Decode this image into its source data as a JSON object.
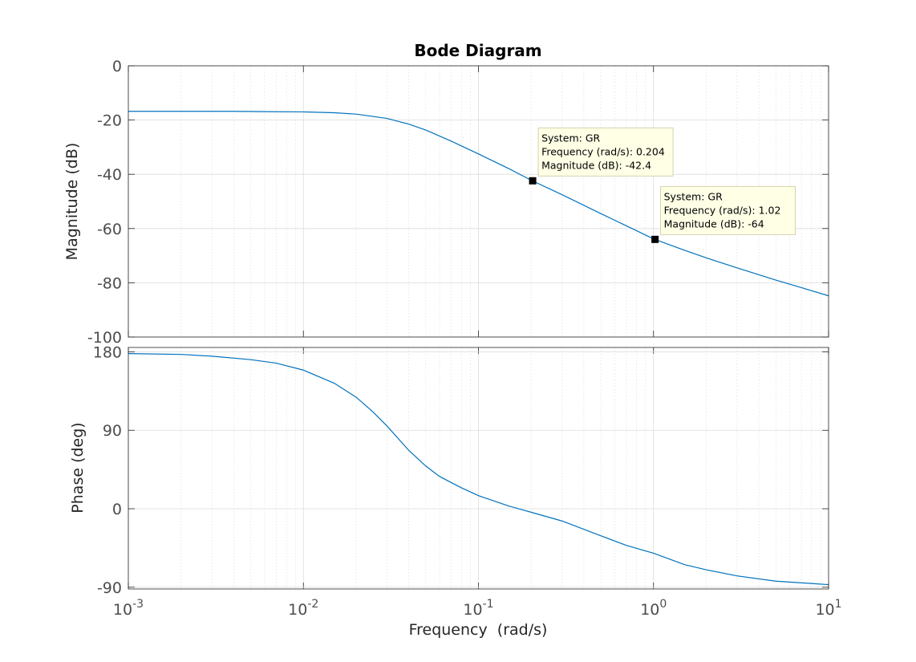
{
  "chart_data": {
    "type": "line",
    "title": "Bode Diagram",
    "xlabel": "Frequency  (rad/s)",
    "x_scale": "log",
    "xlim": [
      0.001,
      10
    ],
    "x_ticks": [
      {
        "base": "10",
        "exp": "-3"
      },
      {
        "base": "10",
        "exp": "-2"
      },
      {
        "base": "10",
        "exp": "-1"
      },
      {
        "base": "10",
        "exp": "0"
      },
      {
        "base": "10",
        "exp": "1"
      }
    ],
    "grid": true,
    "line_color": "#0072BD",
    "panels": [
      {
        "id": "magnitude",
        "ylabel": "Magnitude (dB)",
        "ylim": [
          -100,
          0
        ],
        "yticks": [
          "-100",
          "-80",
          "-60",
          "-40",
          "-20",
          "0"
        ],
        "series": [
          {
            "x": [
              0.001,
              0.002,
              0.004,
              0.006,
              0.01,
              0.015,
              0.02,
              0.03,
              0.04,
              0.05,
              0.07,
              0.1,
              0.15,
              0.2,
              0.3,
              0.5,
              0.7,
              1.0,
              1.5,
              2.0,
              3.0,
              5.0,
              7.0,
              10.0
            ],
            "y": [
              -16.8,
              -16.8,
              -16.8,
              -16.9,
              -17.0,
              -17.3,
              -17.8,
              -19.4,
              -21.5,
              -23.7,
              -27.8,
              -32.5,
              -38.0,
              -42.2,
              -47.5,
              -54.5,
              -59.0,
              -63.8,
              -68.0,
              -70.8,
              -74.5,
              -79.0,
              -81.8,
              -84.8
            ]
          }
        ],
        "datatips": [
          {
            "x": 0.204,
            "y": -42.4,
            "lines": [
              "System: GR",
              "Frequency (rad/s): 0.204",
              "Magnitude (dB): -42.4"
            ]
          },
          {
            "x": 1.02,
            "y": -64,
            "lines": [
              "System: GR",
              "Frequency (rad/s): 1.02",
              "Magnitude (dB): -64"
            ]
          }
        ]
      },
      {
        "id": "phase",
        "ylabel": "Phase (deg)",
        "ylim": [
          -92,
          185
        ],
        "yticks": [
          "-90",
          "0",
          "90",
          "180"
        ],
        "series": [
          {
            "x": [
              0.001,
              0.002,
              0.003,
              0.005,
              0.007,
              0.01,
              0.015,
              0.02,
              0.025,
              0.03,
              0.04,
              0.05,
              0.06,
              0.07,
              0.08,
              0.1,
              0.15,
              0.2,
              0.3,
              0.5,
              0.7,
              1.0,
              1.5,
              2.0,
              3.0,
              5.0,
              7.0,
              10.0
            ],
            "y": [
              178,
              177,
              175,
              171,
              167,
              159,
              144,
              128,
              111,
              95,
              67,
              49,
              37,
              30,
              24,
              15,
              3,
              -4,
              -14,
              -31,
              -42,
              -51,
              -64,
              -70,
              -77,
              -83,
              -85,
              -87
            ]
          }
        ]
      }
    ]
  }
}
